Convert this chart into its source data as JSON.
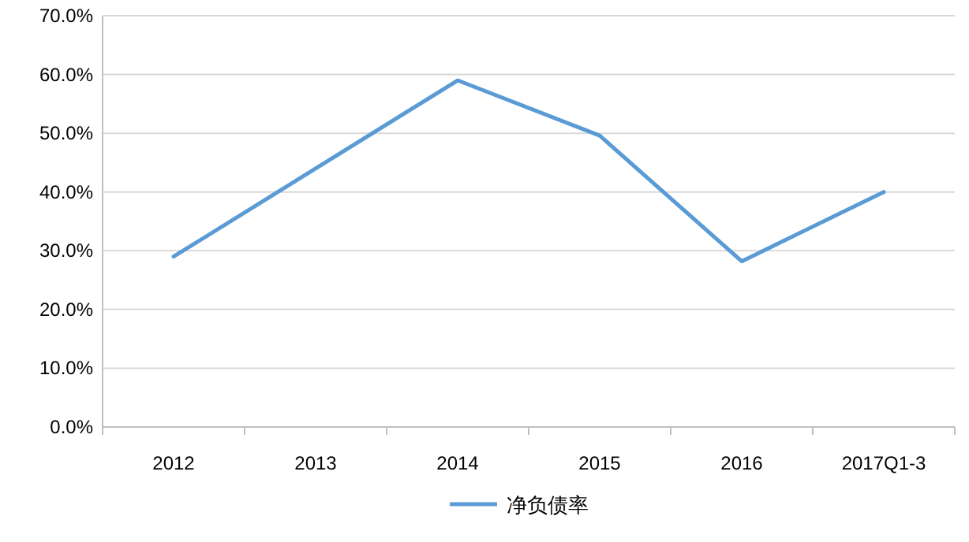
{
  "chart_data": {
    "type": "line",
    "categories": [
      "2012",
      "2013",
      "2014",
      "2015",
      "2016",
      "2017Q1-3"
    ],
    "series": [
      {
        "name": "净负债率",
        "color": "#5b9bd5",
        "values": [
          29.0,
          44.0,
          59.0,
          49.6,
          28.2,
          40.0
        ]
      }
    ],
    "ylim": [
      0,
      70
    ],
    "yticks": [
      {
        "value": 0,
        "label": "0.0%"
      },
      {
        "value": 10,
        "label": "10.0%"
      },
      {
        "value": 20,
        "label": "20.0%"
      },
      {
        "value": 30,
        "label": "30.0%"
      },
      {
        "value": 40,
        "label": "40.0%"
      },
      {
        "value": 50,
        "label": "50.0%"
      },
      {
        "value": 60,
        "label": "60.0%"
      },
      {
        "value": 70,
        "label": "70.0%"
      }
    ],
    "grid": "y",
    "legend": "bottom",
    "marker": "none",
    "line_style": "solid"
  }
}
